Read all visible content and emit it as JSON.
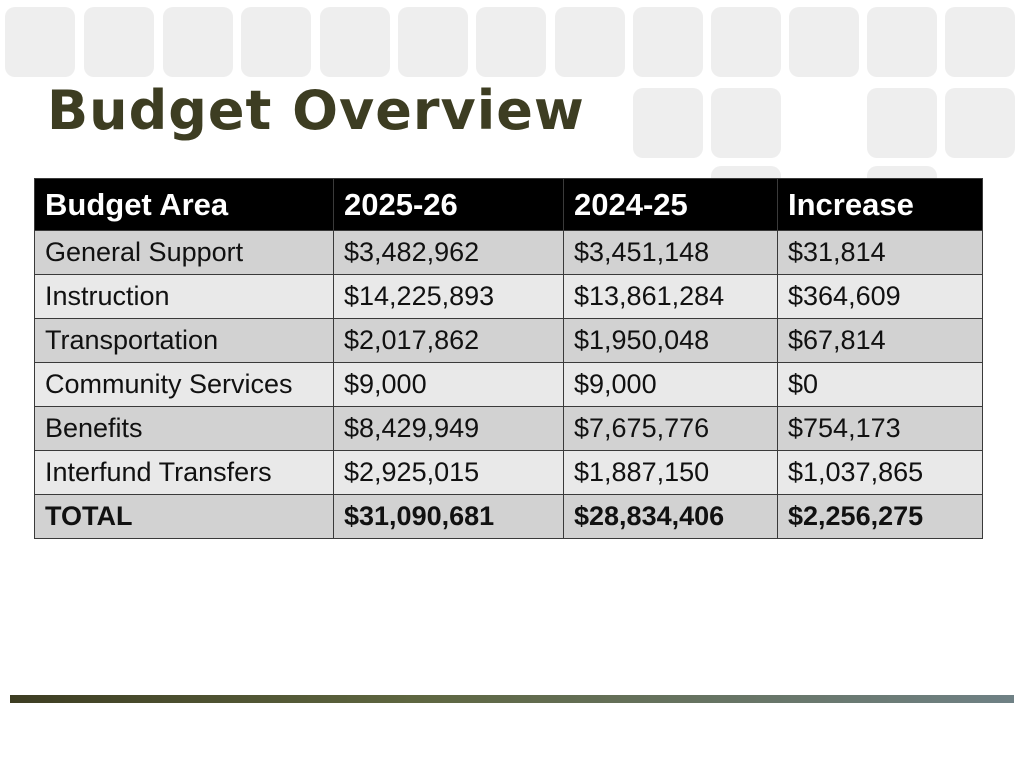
{
  "slide": {
    "title": "Budget Overview"
  },
  "table": {
    "headers": [
      "Budget Area",
      "2025-26",
      "2024-25",
      "Increase"
    ],
    "rows": [
      [
        "General Support",
        "$3,482,962",
        "$3,451,148",
        "$31,814"
      ],
      [
        "Instruction",
        "$14,225,893",
        "$13,861,284",
        "$364,609"
      ],
      [
        "Transportation",
        "$2,017,862",
        "$1,950,048",
        "$67,814"
      ],
      [
        "Community Services",
        "$9,000",
        "$9,000",
        "$0"
      ],
      [
        "Benefits",
        "$8,429,949",
        "$7,675,776",
        "$754,173"
      ],
      [
        "Interfund Transfers",
        "$2,925,015",
        "$1,887,150",
        "$1,037,865"
      ]
    ],
    "total": [
      "TOTAL",
      "$31,090,681",
      "$28,834,406",
      "$2,256,275"
    ]
  },
  "colors": {
    "title": "#3d3d22",
    "header_bg": "#000000",
    "row_dark": "#d2d2d2",
    "row_light": "#e9e9e9",
    "tile": "#eeeeee"
  }
}
